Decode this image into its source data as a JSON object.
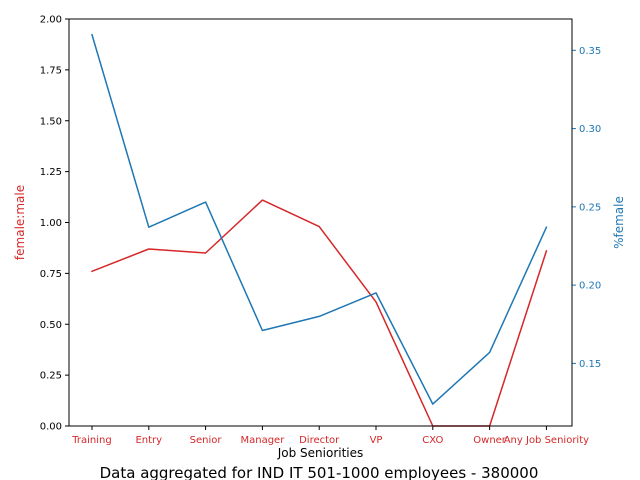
{
  "chart_data": {
    "type": "line",
    "title": "Data aggregated for IND IT 501-1000 employees - 380000",
    "xlabel": "Job Seniorities",
    "categories": [
      "Training",
      "Entry",
      "Senior",
      "Manager",
      "Director",
      "VP",
      "CXO",
      "Owner",
      "Any Job Seniority"
    ],
    "left_axis": {
      "label": "female:male",
      "color": "#d62728",
      "ylim": [
        0,
        2.0
      ],
      "ticks": [
        "0.00",
        "0.25",
        "0.50",
        "0.75",
        "1.00",
        "1.25",
        "1.50",
        "1.75",
        "2.00"
      ]
    },
    "right_axis": {
      "label": "%female",
      "color": "#1f77b4",
      "ylim": [
        0.11,
        0.37
      ],
      "ticks": [
        "0.15",
        "0.20",
        "0.25",
        "0.30",
        "0.35"
      ]
    },
    "series": [
      {
        "axis": "left",
        "color": "#d62728",
        "values": [
          0.76,
          0.87,
          0.85,
          1.11,
          0.98,
          0.61,
          0.0,
          0.0,
          0.86
        ]
      },
      {
        "axis": "right",
        "color": "#1f77b4",
        "values": [
          0.36,
          0.237,
          0.253,
          0.171,
          0.18,
          0.195,
          0.124,
          0.157,
          0.237
        ]
      }
    ],
    "grid": false,
    "legend": "none"
  }
}
